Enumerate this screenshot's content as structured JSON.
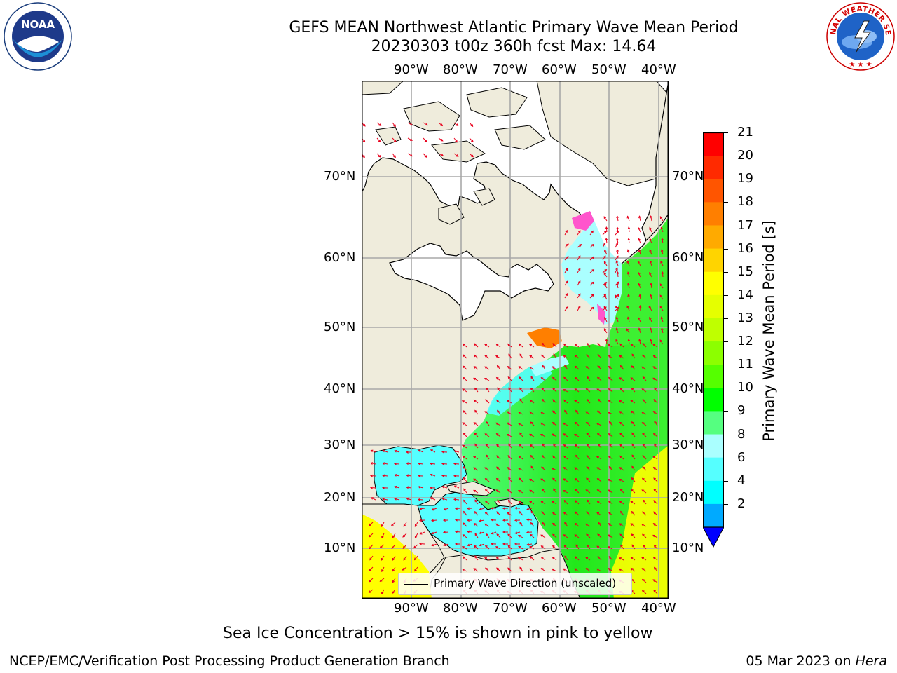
{
  "title": {
    "line1": "GEFS MEAN Northwest Atlantic Primary Wave Mean Period",
    "line2": "20230303 t00z 360h fcst   Max: 14.64"
  },
  "logos": {
    "left": {
      "name": "noaa-logo",
      "text": "NOAA",
      "ring_text": "NATIONAL OCEANIC AND ATMOSPHERIC ADMINISTRATION · U.S. DEPARTMENT OF COMMERCE"
    },
    "right": {
      "name": "nws-logo",
      "ring_text": "NATIONAL WEATHER SERVICE"
    }
  },
  "map": {
    "lon_labels": [
      "90°W",
      "80°W",
      "70°W",
      "60°W",
      "50°W",
      "40°W"
    ],
    "lat_labels": [
      "70°N",
      "60°N",
      "50°N",
      "40°N",
      "30°N",
      "20°N",
      "10°N"
    ],
    "legend_label": "Primary Wave Direction (unscaled)",
    "land_color": "#efecdc",
    "ocean_no_data_color": "#ffffff",
    "arrow_color": "#e8001c"
  },
  "colorbar": {
    "label": "Primary Wave Mean Period [s]",
    "ticks": [
      "21",
      "20",
      "19",
      "18",
      "17",
      "16",
      "15",
      "14",
      "13",
      "12",
      "11",
      "10",
      "9",
      "8",
      "6",
      "4",
      "2"
    ],
    "colors": [
      "#ff0000",
      "#ff2a00",
      "#ff5500",
      "#ff7f00",
      "#ffaa00",
      "#ffd400",
      "#ffff00",
      "#e5ff00",
      "#bfff00",
      "#8cff00",
      "#55ff00",
      "#00ff00",
      "#55ff80",
      "#aaffff",
      "#55ffff",
      "#00ffff",
      "#00aaff"
    ],
    "extend_color": "#0000ff"
  },
  "note": "Sea Ice Concentration > 15% is shown in pink to yellow",
  "footer": {
    "left": "NCEP/EMC/Verification Post Processing Product Generation Branch",
    "right_date": "05 Mar 2023 on ",
    "right_host": "Hera"
  }
}
